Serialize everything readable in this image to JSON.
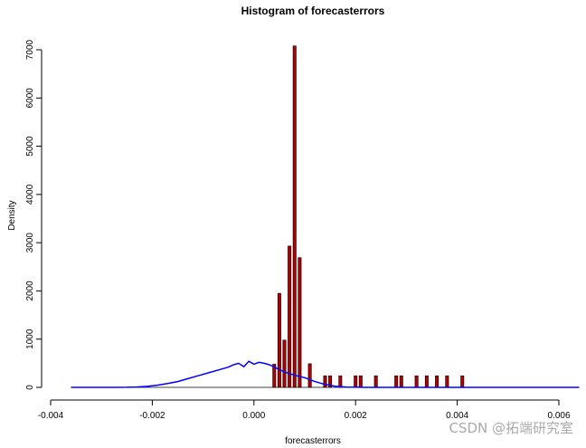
{
  "chart_data": {
    "type": "bar",
    "title": "Histogram of forecasterrors",
    "xlabel": "forecasterrors",
    "ylabel": "Density",
    "xlim": [
      -0.004,
      0.006
    ],
    "ylim": [
      0,
      7000
    ],
    "x_ticks": [
      "-0.004",
      "-0.002",
      "0.000",
      "0.002",
      "0.004",
      "0.006"
    ],
    "y_ticks": [
      "0",
      "1000",
      "2000",
      "3000",
      "4000",
      "5000",
      "6000",
      "7000"
    ],
    "grid": false,
    "legend": "none",
    "bar_width": 6e-05,
    "series": [
      {
        "kind": "histogram",
        "color": "#b00000",
        "bins": [
          {
            "x": 0.0004,
            "y": 480
          },
          {
            "x": 0.0005,
            "y": 1950
          },
          {
            "x": 0.0006,
            "y": 980
          },
          {
            "x": 0.0007,
            "y": 2930
          },
          {
            "x": 0.0008,
            "y": 7080
          },
          {
            "x": 0.0009,
            "y": 2690
          },
          {
            "x": 0.0011,
            "y": 490
          },
          {
            "x": 0.0014,
            "y": 240
          },
          {
            "x": 0.0015,
            "y": 240
          },
          {
            "x": 0.0017,
            "y": 240
          },
          {
            "x": 0.002,
            "y": 240
          },
          {
            "x": 0.0021,
            "y": 240
          },
          {
            "x": 0.0024,
            "y": 240
          },
          {
            "x": 0.0028,
            "y": 240
          },
          {
            "x": 0.0029,
            "y": 240
          },
          {
            "x": 0.0032,
            "y": 240
          },
          {
            "x": 0.0034,
            "y": 240
          },
          {
            "x": 0.0036,
            "y": 240
          },
          {
            "x": 0.0038,
            "y": 240
          },
          {
            "x": 0.0041,
            "y": 240
          }
        ]
      },
      {
        "kind": "line",
        "color": "#0000ff",
        "points": [
          [
            -0.0036,
            0
          ],
          [
            -0.003,
            0
          ],
          [
            -0.0025,
            2
          ],
          [
            -0.0023,
            8
          ],
          [
            -0.0021,
            20
          ],
          [
            -0.0019,
            45
          ],
          [
            -0.0017,
            80
          ],
          [
            -0.0015,
            120
          ],
          [
            -0.0013,
            180
          ],
          [
            -0.0011,
            240
          ],
          [
            -0.0009,
            300
          ],
          [
            -0.0007,
            360
          ],
          [
            -0.0005,
            420
          ],
          [
            -0.0004,
            470
          ],
          [
            -0.0003,
            500
          ],
          [
            -0.0002,
            430
          ],
          [
            -0.0001,
            540
          ],
          [
            0.0,
            480
          ],
          [
            0.0001,
            520
          ],
          [
            0.0002,
            500
          ],
          [
            0.0003,
            470
          ],
          [
            0.0004,
            420
          ],
          [
            0.0005,
            370
          ],
          [
            0.0006,
            320
          ],
          [
            0.0008,
            250
          ],
          [
            0.001,
            200
          ],
          [
            0.0012,
            120
          ],
          [
            0.0014,
            60
          ],
          [
            0.0016,
            25
          ],
          [
            0.0018,
            8
          ],
          [
            0.0022,
            0
          ],
          [
            0.003,
            0
          ],
          [
            0.004,
            0
          ],
          [
            0.005,
            0
          ],
          [
            0.0064,
            0
          ]
        ]
      }
    ]
  },
  "watermark": "CSDN @拓端研究室"
}
